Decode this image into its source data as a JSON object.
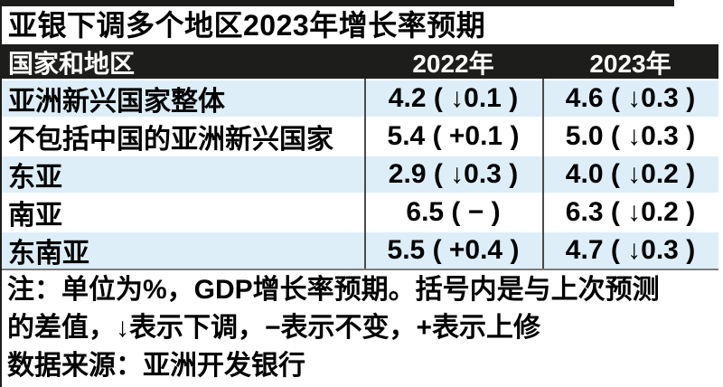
{
  "title": "亚银下调多个地区2023年增长率预期",
  "table": {
    "header": {
      "region": "国家和地区",
      "col2022": "2022年",
      "col2023": "2023年"
    },
    "rows": [
      {
        "region": "亚洲新兴国家整体",
        "v2022": "4.2 ( ↓0.1 )",
        "v2023": "4.6 ( ↓0.3 )"
      },
      {
        "region": "不包括中国的亚洲新兴国家",
        "v2022": "5.4 ( +0.1 )",
        "v2023": "5.0 ( ↓0.3 )"
      },
      {
        "region": "东亚",
        "v2022": "2.9 ( ↓0.3 )",
        "v2023": "4.0 ( ↓0.2 )"
      },
      {
        "region": "南亚",
        "v2022": "6.5 ( − )",
        "v2023": "6.3 ( ↓0.2 )"
      },
      {
        "region": "东南亚",
        "v2022": "5.5 ( +0.4 )",
        "v2023": "4.7 ( ↓0.3 )"
      }
    ]
  },
  "notes": {
    "line1": "注：单位为%，GDP增长率预期。括号内是与上次预测",
    "line2": "的差值，↓表示下调，−表示不变，+表示上修",
    "source": "数据来源：亚洲开发银行"
  },
  "colors": {
    "bar_black": "#1d1d1b",
    "row_highlight_blue": "#ddeef8",
    "column_divider_gray": "#4a4a4a",
    "text_black": "#000000",
    "header_text_white": "#ffffff"
  },
  "chart_data": {
    "type": "table",
    "title": "亚银下调多个地区2023年增长率预期",
    "unit": "%",
    "metric": "GDP增长率预期",
    "columns": [
      "国家和地区",
      "2022年",
      "2023年"
    ],
    "categories": [
      "亚洲新兴国家整体",
      "不包括中国的亚洲新兴国家",
      "东亚",
      "南亚",
      "东南亚"
    ],
    "series": [
      {
        "name": "2022年",
        "values": [
          4.2,
          5.4,
          2.9,
          6.5,
          5.5
        ],
        "revision_vs_previous": [
          -0.1,
          0.1,
          -0.3,
          0,
          0.4
        ]
      },
      {
        "name": "2023年",
        "values": [
          4.6,
          5.0,
          4.0,
          6.3,
          4.7
        ],
        "revision_vs_previous": [
          -0.3,
          -0.3,
          -0.2,
          -0.2,
          -0.3
        ]
      }
    ],
    "legend_note": "括号内是与上次预测的差值，↓表示下调，−表示不变，+表示上修",
    "source": "亚洲开发银行"
  }
}
